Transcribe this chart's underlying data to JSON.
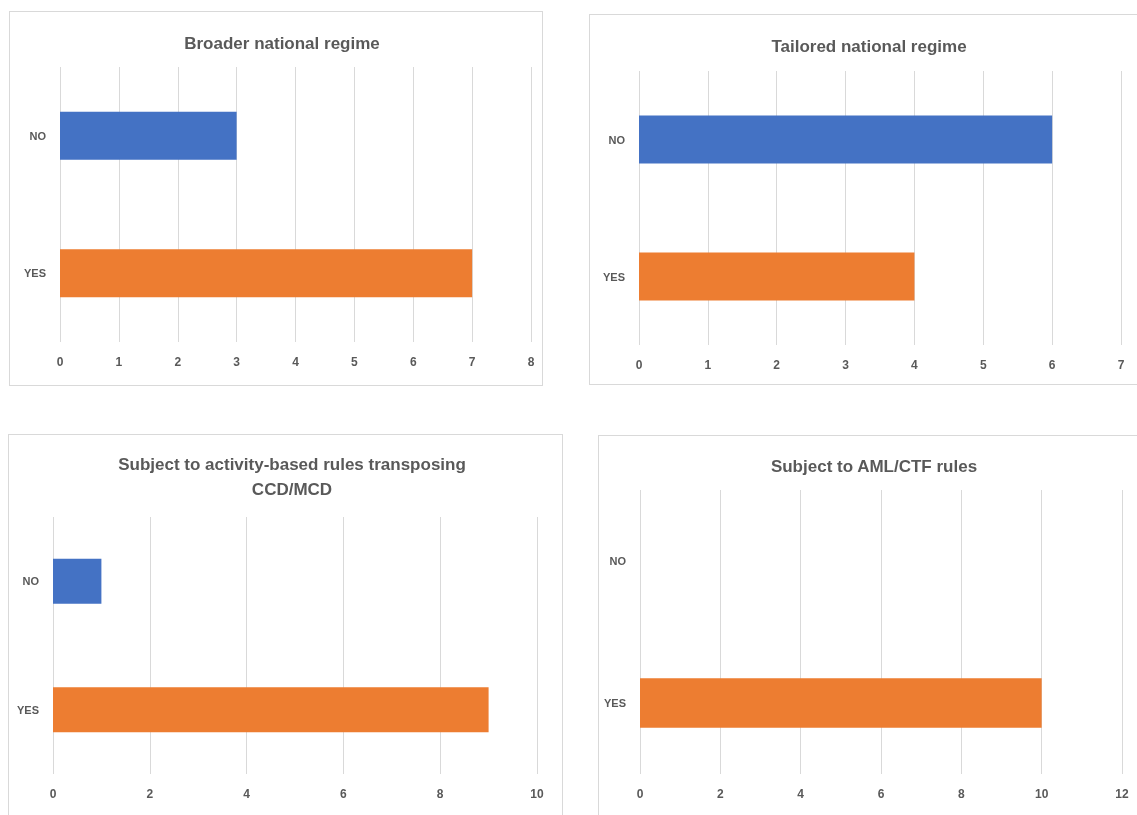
{
  "chart_data": [
    {
      "type": "bar",
      "orientation": "horizontal",
      "title": "Broader national regime",
      "categories": [
        "NO",
        "YES"
      ],
      "values": [
        3,
        7
      ],
      "colors": [
        "#4472c4",
        "#ed7d31"
      ],
      "xlim": [
        0,
        8
      ],
      "xticks": [
        0,
        1,
        2,
        3,
        4,
        5,
        6,
        7,
        8
      ],
      "grid": "x"
    },
    {
      "type": "bar",
      "orientation": "horizontal",
      "title": "Tailored national regime",
      "categories": [
        "NO",
        "YES"
      ],
      "values": [
        6,
        4
      ],
      "colors": [
        "#4472c4",
        "#ed7d31"
      ],
      "xlim": [
        0,
        7
      ],
      "xticks": [
        0,
        1,
        2,
        3,
        4,
        5,
        6,
        7
      ],
      "grid": "x"
    },
    {
      "type": "bar",
      "orientation": "horizontal",
      "title": "Subject to activity-based rules transposing CCD/MCD",
      "categories": [
        "NO",
        "YES"
      ],
      "values": [
        1,
        9
      ],
      "colors": [
        "#4472c4",
        "#ed7d31"
      ],
      "xlim": [
        0,
        10
      ],
      "xticks": [
        0,
        2,
        4,
        6,
        8,
        10
      ],
      "grid": "x"
    },
    {
      "type": "bar",
      "orientation": "horizontal",
      "title": "Subject to AML/CTF rules",
      "categories": [
        "NO",
        "YES"
      ],
      "values": [
        0,
        10
      ],
      "colors": [
        "#4472c4",
        "#ed7d31"
      ],
      "xlim": [
        0,
        12
      ],
      "xticks": [
        0,
        2,
        4,
        6,
        8,
        10,
        12
      ],
      "grid": "x"
    }
  ]
}
